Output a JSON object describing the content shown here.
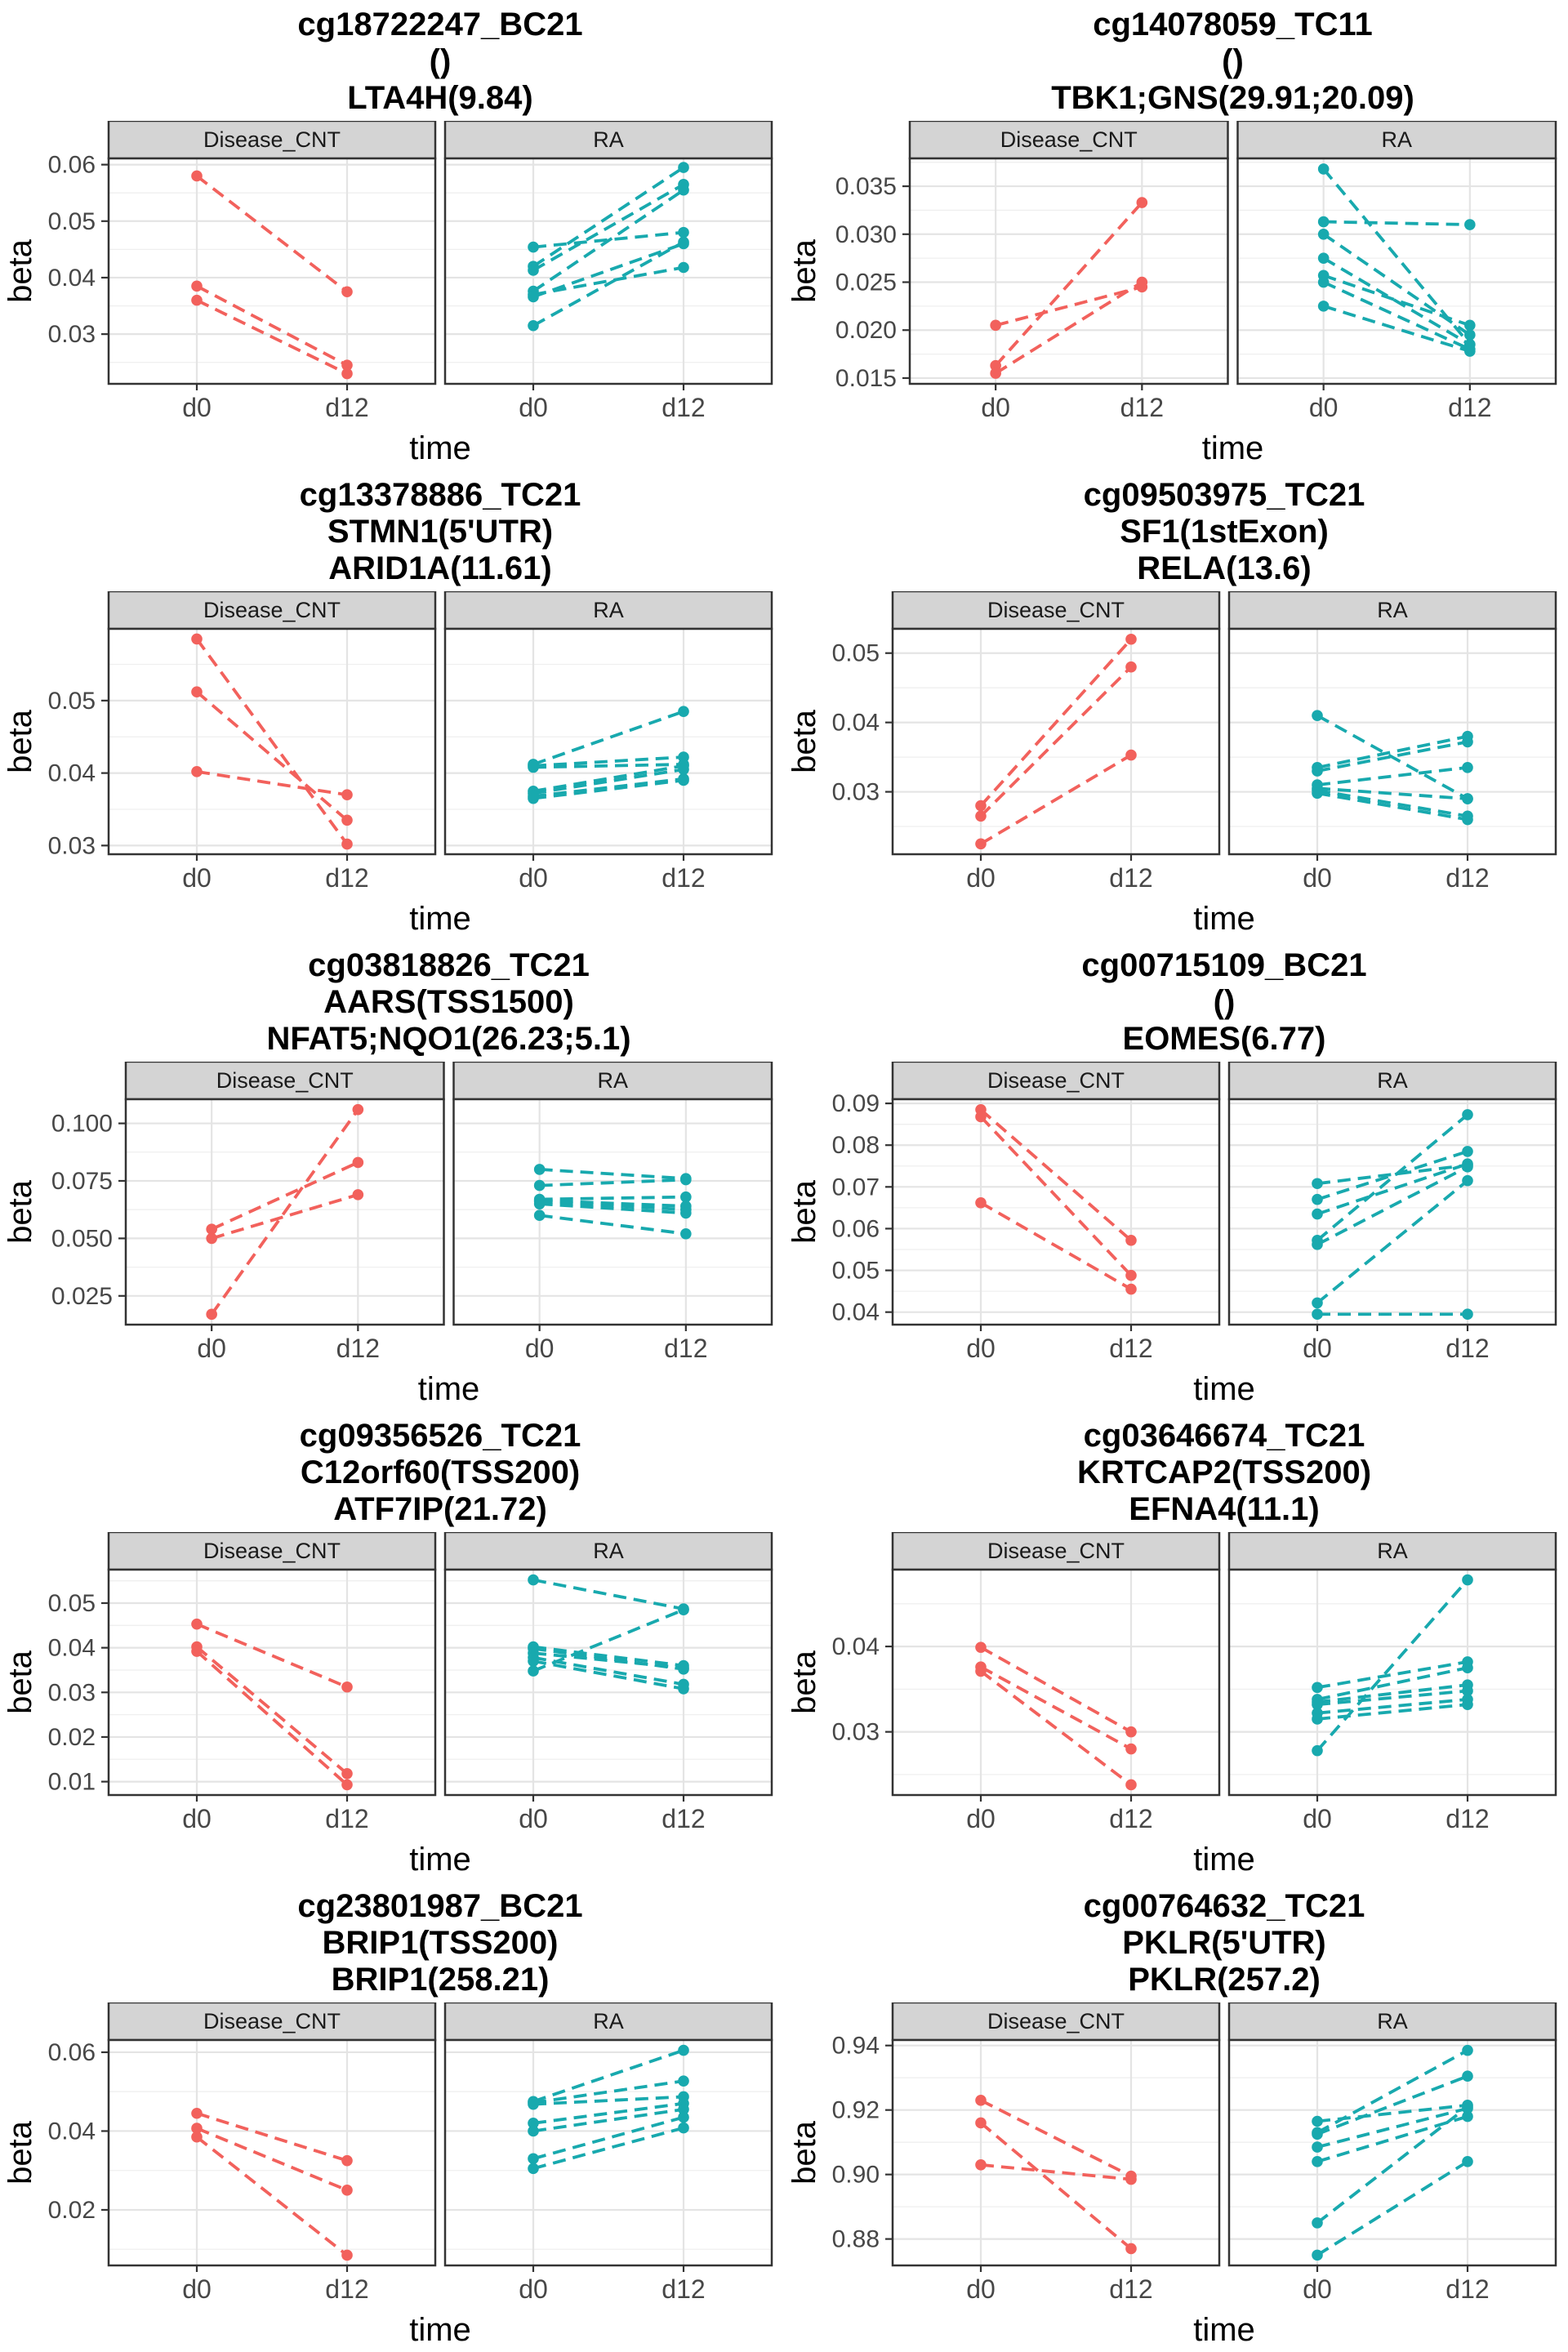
{
  "figure": {
    "xlabel": "time",
    "ylabel": "beta",
    "x_categories": [
      "d0",
      "d12"
    ],
    "facet_labels": [
      "Disease_CNT",
      "RA"
    ],
    "colors": {
      "Disease_CNT": "#F2615C",
      "RA": "#18A9AE"
    },
    "style": {
      "strip_bg": "#D4D4D4",
      "panel_border": "#333333",
      "grid_major": "#E4E4E4",
      "grid_minor": "#EFEFEF",
      "background": "#FFFFFF"
    }
  },
  "chart_data": [
    {
      "type": "line",
      "title_lines": [
        "cg18722247_BC21",
        "()",
        "LTA4H(9.84)"
      ],
      "x": [
        "d0",
        "d12"
      ],
      "y_ticks": [
        0.03,
        0.04,
        0.05,
        0.06
      ],
      "y_tick_labels": [
        "0.03",
        "0.04",
        "0.05",
        "0.06"
      ],
      "ylim": [
        0.0212,
        0.0611
      ],
      "series": [
        {
          "group": "Disease_CNT",
          "values": [
            0.058,
            0.0375
          ]
        },
        {
          "group": "Disease_CNT",
          "values": [
            0.0385,
            0.0245
          ]
        },
        {
          "group": "Disease_CNT",
          "values": [
            0.036,
            0.023
          ]
        },
        {
          "group": "RA",
          "values": [
            0.0454,
            0.048
          ]
        },
        {
          "group": "RA",
          "values": [
            0.042,
            0.0595
          ]
        },
        {
          "group": "RA",
          "values": [
            0.0413,
            0.0565
          ]
        },
        {
          "group": "RA",
          "values": [
            0.0376,
            0.0555
          ]
        },
        {
          "group": "RA",
          "values": [
            0.037,
            0.0418
          ]
        },
        {
          "group": "RA",
          "values": [
            0.0366,
            0.046
          ]
        },
        {
          "group": "RA",
          "values": [
            0.0315,
            0.0463
          ]
        }
      ]
    },
    {
      "type": "line",
      "title_lines": [
        "cg14078059_TC11",
        "()",
        "TBK1;GNS(29.91;20.09)"
      ],
      "x": [
        "d0",
        "d12"
      ],
      "y_ticks": [
        0.015,
        0.02,
        0.025,
        0.03,
        0.035
      ],
      "y_tick_labels": [
        "0.015",
        "0.020",
        "0.025",
        "0.030",
        "0.035"
      ],
      "ylim": [
        0.0144,
        0.0379
      ],
      "series": [
        {
          "group": "Disease_CNT",
          "values": [
            0.0205,
            0.0245
          ]
        },
        {
          "group": "Disease_CNT",
          "values": [
            0.0163,
            0.0333
          ]
        },
        {
          "group": "Disease_CNT",
          "values": [
            0.0155,
            0.025
          ]
        },
        {
          "group": "RA",
          "values": [
            0.0368,
            0.0185
          ]
        },
        {
          "group": "RA",
          "values": [
            0.0313,
            0.031
          ]
        },
        {
          "group": "RA",
          "values": [
            0.03,
            0.0195
          ]
        },
        {
          "group": "RA",
          "values": [
            0.0275,
            0.0185
          ]
        },
        {
          "group": "RA",
          "values": [
            0.0257,
            0.0205
          ]
        },
        {
          "group": "RA",
          "values": [
            0.025,
            0.018
          ]
        },
        {
          "group": "RA",
          "values": [
            0.0225,
            0.0178
          ]
        }
      ]
    },
    {
      "type": "line",
      "title_lines": [
        "cg13378886_TC21",
        "STMN1(5'UTR)",
        "ARID1A(11.61)"
      ],
      "x": [
        "d0",
        "d12"
      ],
      "y_ticks": [
        0.03,
        0.04,
        0.05
      ],
      "y_tick_labels": [
        "0.03",
        "0.04",
        "0.05"
      ],
      "ylim": [
        0.0288,
        0.0599
      ],
      "series": [
        {
          "group": "Disease_CNT",
          "values": [
            0.0585,
            0.0302
          ]
        },
        {
          "group": "Disease_CNT",
          "values": [
            0.0512,
            0.0335
          ]
        },
        {
          "group": "Disease_CNT",
          "values": [
            0.0402,
            0.037
          ]
        },
        {
          "group": "RA",
          "values": [
            0.0412,
            0.0485
          ]
        },
        {
          "group": "RA",
          "values": [
            0.041,
            0.0422
          ]
        },
        {
          "group": "RA",
          "values": [
            0.0408,
            0.0412
          ]
        },
        {
          "group": "RA",
          "values": [
            0.0375,
            0.041
          ]
        },
        {
          "group": "RA",
          "values": [
            0.0372,
            0.0405
          ]
        },
        {
          "group": "RA",
          "values": [
            0.0368,
            0.0392
          ]
        },
        {
          "group": "RA",
          "values": [
            0.0365,
            0.039
          ]
        }
      ]
    },
    {
      "type": "line",
      "title_lines": [
        "cg09503975_TC21",
        "SF1(1stExon)",
        "RELA(13.6)"
      ],
      "x": [
        "d0",
        "d12"
      ],
      "y_ticks": [
        0.03,
        0.04,
        0.05
      ],
      "y_tick_labels": [
        "0.03",
        "0.04",
        "0.05"
      ],
      "ylim": [
        0.021,
        0.0535
      ],
      "series": [
        {
          "group": "Disease_CNT",
          "values": [
            0.028,
            0.052
          ]
        },
        {
          "group": "Disease_CNT",
          "values": [
            0.0265,
            0.048
          ]
        },
        {
          "group": "Disease_CNT",
          "values": [
            0.0225,
            0.0353
          ]
        },
        {
          "group": "RA",
          "values": [
            0.041,
            0.029
          ]
        },
        {
          "group": "RA",
          "values": [
            0.0335,
            0.038
          ]
        },
        {
          "group": "RA",
          "values": [
            0.033,
            0.0372
          ]
        },
        {
          "group": "RA",
          "values": [
            0.031,
            0.0335
          ]
        },
        {
          "group": "RA",
          "values": [
            0.0305,
            0.029
          ]
        },
        {
          "group": "RA",
          "values": [
            0.0302,
            0.0265
          ]
        },
        {
          "group": "RA",
          "values": [
            0.0298,
            0.026
          ]
        }
      ]
    },
    {
      "type": "line",
      "title_lines": [
        "cg03818826_TC21",
        "AARS(TSS1500)",
        "NFAT5;NQO1(26.23;5.1)"
      ],
      "x": [
        "d0",
        "d12"
      ],
      "y_ticks": [
        0.025,
        0.05,
        0.075,
        0.1
      ],
      "y_tick_labels": [
        "0.025",
        "0.050",
        "0.075",
        "0.100"
      ],
      "ylim": [
        0.0125,
        0.1105
      ],
      "series": [
        {
          "group": "Disease_CNT",
          "values": [
            0.054,
            0.083
          ]
        },
        {
          "group": "Disease_CNT",
          "values": [
            0.05,
            0.069
          ]
        },
        {
          "group": "Disease_CNT",
          "values": [
            0.017,
            0.106
          ]
        },
        {
          "group": "RA",
          "values": [
            0.08,
            0.076
          ]
        },
        {
          "group": "RA",
          "values": [
            0.073,
            0.0755
          ]
        },
        {
          "group": "RA",
          "values": [
            0.067,
            0.068
          ]
        },
        {
          "group": "RA",
          "values": [
            0.0665,
            0.064
          ]
        },
        {
          "group": "RA",
          "values": [
            0.066,
            0.0625
          ]
        },
        {
          "group": "RA",
          "values": [
            0.065,
            0.061
          ]
        },
        {
          "group": "RA",
          "values": [
            0.06,
            0.052
          ]
        }
      ]
    },
    {
      "type": "line",
      "title_lines": [
        "cg00715109_BC21",
        "()",
        "EOMES(6.77)"
      ],
      "x": [
        "d0",
        "d12"
      ],
      "y_ticks": [
        0.04,
        0.05,
        0.06,
        0.07,
        0.08,
        0.09
      ],
      "y_tick_labels": [
        "0.04",
        "0.05",
        "0.06",
        "0.07",
        "0.08",
        "0.09"
      ],
      "ylim": [
        0.037,
        0.091
      ],
      "series": [
        {
          "group": "Disease_CNT",
          "values": [
            0.0885,
            0.0572
          ]
        },
        {
          "group": "Disease_CNT",
          "values": [
            0.0868,
            0.0488
          ]
        },
        {
          "group": "Disease_CNT",
          "values": [
            0.0662,
            0.0455
          ]
        },
        {
          "group": "RA",
          "values": [
            0.0708,
            0.0752
          ]
        },
        {
          "group": "RA",
          "values": [
            0.067,
            0.0785
          ]
        },
        {
          "group": "RA",
          "values": [
            0.0635,
            0.0755
          ]
        },
        {
          "group": "RA",
          "values": [
            0.0572,
            0.0873
          ]
        },
        {
          "group": "RA",
          "values": [
            0.0562,
            0.0748
          ]
        },
        {
          "group": "RA",
          "values": [
            0.0422,
            0.0715
          ]
        },
        {
          "group": "RA",
          "values": [
            0.0395,
            0.0395
          ]
        }
      ]
    },
    {
      "type": "line",
      "title_lines": [
        "cg09356526_TC21",
        "C12orf60(TSS200)",
        "ATF7IP(21.72)"
      ],
      "x": [
        "d0",
        "d12"
      ],
      "y_ticks": [
        0.01,
        0.02,
        0.03,
        0.04,
        0.05
      ],
      "y_tick_labels": [
        "0.01",
        "0.02",
        "0.03",
        "0.04",
        "0.05"
      ],
      "ylim": [
        0.007,
        0.0575
      ],
      "series": [
        {
          "group": "Disease_CNT",
          "values": [
            0.0453,
            0.0312
          ]
        },
        {
          "group": "Disease_CNT",
          "values": [
            0.0402,
            0.0118
          ]
        },
        {
          "group": "Disease_CNT",
          "values": [
            0.0392,
            0.0093
          ]
        },
        {
          "group": "RA",
          "values": [
            0.0552,
            0.0487
          ]
        },
        {
          "group": "RA",
          "values": [
            0.0402,
            0.036
          ]
        },
        {
          "group": "RA",
          "values": [
            0.0398,
            0.0352
          ]
        },
        {
          "group": "RA",
          "values": [
            0.0388,
            0.0355
          ]
        },
        {
          "group": "RA",
          "values": [
            0.0378,
            0.0318
          ]
        },
        {
          "group": "RA",
          "values": [
            0.037,
            0.0308
          ]
        },
        {
          "group": "RA",
          "values": [
            0.0348,
            0.0485
          ]
        }
      ]
    },
    {
      "type": "line",
      "title_lines": [
        "cg03646674_TC21",
        "KRTCAP2(TSS200)",
        "EFNA4(11.1)"
      ],
      "x": [
        "d0",
        "d12"
      ],
      "y_ticks": [
        0.03,
        0.04
      ],
      "y_tick_labels": [
        "0.03",
        "0.04"
      ],
      "ylim": [
        0.0226,
        0.049
      ],
      "series": [
        {
          "group": "Disease_CNT",
          "values": [
            0.0399,
            0.03
          ]
        },
        {
          "group": "Disease_CNT",
          "values": [
            0.0376,
            0.028
          ]
        },
        {
          "group": "Disease_CNT",
          "values": [
            0.0371,
            0.0238
          ]
        },
        {
          "group": "RA",
          "values": [
            0.0352,
            0.0382
          ]
        },
        {
          "group": "RA",
          "values": [
            0.0338,
            0.0375
          ]
        },
        {
          "group": "RA",
          "values": [
            0.0335,
            0.0355
          ]
        },
        {
          "group": "RA",
          "values": [
            0.0332,
            0.0348
          ]
        },
        {
          "group": "RA",
          "values": [
            0.0322,
            0.0338
          ]
        },
        {
          "group": "RA",
          "values": [
            0.0315,
            0.0332
          ]
        },
        {
          "group": "RA",
          "values": [
            0.0278,
            0.0478
          ]
        }
      ]
    },
    {
      "type": "line",
      "title_lines": [
        "cg23801987_BC21",
        "BRIP1(TSS200)",
        "BRIP1(258.21)"
      ],
      "x": [
        "d0",
        "d12"
      ],
      "y_ticks": [
        0.02,
        0.04,
        0.06
      ],
      "y_tick_labels": [
        "0.02",
        "0.04",
        "0.06"
      ],
      "ylim": [
        0.0059,
        0.0631
      ],
      "series": [
        {
          "group": "Disease_CNT",
          "values": [
            0.0445,
            0.0325
          ]
        },
        {
          "group": "Disease_CNT",
          "values": [
            0.0407,
            0.025
          ]
        },
        {
          "group": "Disease_CNT",
          "values": [
            0.0385,
            0.0085
          ]
        },
        {
          "group": "RA",
          "values": [
            0.0475,
            0.0605
          ]
        },
        {
          "group": "RA",
          "values": [
            0.0472,
            0.0527
          ]
        },
        {
          "group": "RA",
          "values": [
            0.0468,
            0.0487
          ]
        },
        {
          "group": "RA",
          "values": [
            0.042,
            0.047
          ]
        },
        {
          "group": "RA",
          "values": [
            0.04,
            0.0455
          ]
        },
        {
          "group": "RA",
          "values": [
            0.033,
            0.0435
          ]
        },
        {
          "group": "RA",
          "values": [
            0.0305,
            0.0408
          ]
        }
      ]
    },
    {
      "type": "line",
      "title_lines": [
        "cg00764632_TC21",
        "PKLR(5'UTR)",
        "PKLR(257.2)"
      ],
      "x": [
        "d0",
        "d12"
      ],
      "y_ticks": [
        0.88,
        0.9,
        0.92,
        0.94
      ],
      "y_tick_labels": [
        "0.88",
        "0.90",
        "0.92",
        "0.94"
      ],
      "ylim": [
        0.8718,
        0.9417
      ],
      "series": [
        {
          "group": "Disease_CNT",
          "values": [
            0.923,
            0.8995
          ]
        },
        {
          "group": "Disease_CNT",
          "values": [
            0.916,
            0.877
          ]
        },
        {
          "group": "Disease_CNT",
          "values": [
            0.903,
            0.8985
          ]
        },
        {
          "group": "RA",
          "values": [
            0.9165,
            0.9215
          ]
        },
        {
          "group": "RA",
          "values": [
            0.913,
            0.9385
          ]
        },
        {
          "group": "RA",
          "values": [
            0.9125,
            0.9305
          ]
        },
        {
          "group": "RA",
          "values": [
            0.9085,
            0.9205
          ]
        },
        {
          "group": "RA",
          "values": [
            0.904,
            0.918
          ]
        },
        {
          "group": "RA",
          "values": [
            0.885,
            0.921
          ]
        },
        {
          "group": "RA",
          "values": [
            0.875,
            0.904
          ]
        }
      ]
    }
  ]
}
